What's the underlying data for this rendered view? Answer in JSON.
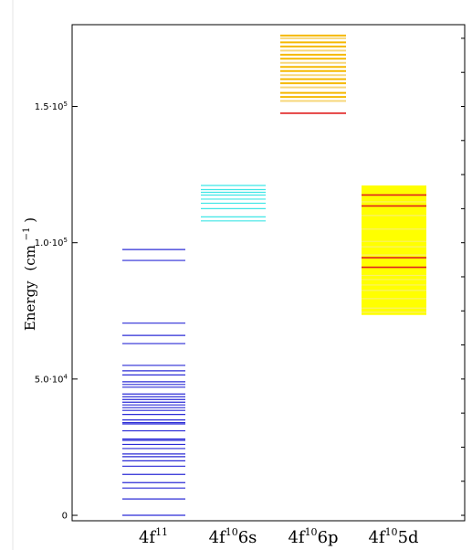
{
  "chart_data": {
    "type": "energy-level-diagram",
    "ylabel": "Energy",
    "ylabel_unit": "(cm",
    "ylabel_unit_exp": "−1",
    "ylabel_unit_close": ")",
    "ylim": [
      -2000,
      180000
    ],
    "yticks": [
      {
        "value": 0,
        "base": "0",
        "exp": ""
      },
      {
        "value": 50000,
        "base": "5.0·10",
        "exp": "4"
      },
      {
        "value": 100000,
        "base": "1.0·10",
        "exp": "5"
      },
      {
        "value": 150000,
        "base": "1.5·10",
        "exp": "5"
      }
    ],
    "colors": {
      "f11": "#2b2bd6",
      "s": "#3fe6e6",
      "p": "#f5b800",
      "p_light": "#f7d77a",
      "d_fill": "#ffff00",
      "d_line": "#f9f06a",
      "red": "#e02020"
    },
    "groups": [
      {
        "id": "f11",
        "label": "4f",
        "sup": "11",
        "suffix": "",
        "levels": [
          0,
          6000,
          10000,
          12000,
          15000,
          18000,
          20000,
          21500,
          22500,
          24500,
          26000,
          27500,
          28000,
          31000,
          33500,
          34000,
          35000,
          37000,
          38500,
          39500,
          40500,
          41500,
          42500,
          43500,
          44500,
          47000,
          48000,
          49000,
          51500,
          53000,
          55000,
          63000,
          66000,
          70500,
          93500,
          97500
        ],
        "highlight": []
      },
      {
        "id": "s",
        "label": "4f",
        "sup": "10",
        "suffix": "6s",
        "levels": [
          108000,
          109500,
          112500,
          114500,
          116000,
          117500,
          118500,
          119500,
          121000
        ],
        "highlight": []
      },
      {
        "id": "p",
        "label": "4f",
        "sup": "10",
        "suffix": "6p",
        "levels": [
          152000,
          153500,
          155000,
          157000,
          158500,
          160000,
          161500,
          163000,
          164500,
          166000,
          167500,
          169000,
          170500,
          172000,
          173500,
          175000,
          176000
        ],
        "highlight": [
          147500
        ]
      },
      {
        "id": "d",
        "label": "4f",
        "sup": "10",
        "suffix": "5d",
        "fill_range": [
          73500,
          121000
        ],
        "levels": [
          74500,
          76000,
          79500,
          82500,
          84500,
          86500,
          88000,
          95500,
          98500,
          100500,
          105000,
          110000,
          115000
        ],
        "highlight": [
          91000,
          94500,
          113500,
          117500
        ]
      }
    ]
  }
}
